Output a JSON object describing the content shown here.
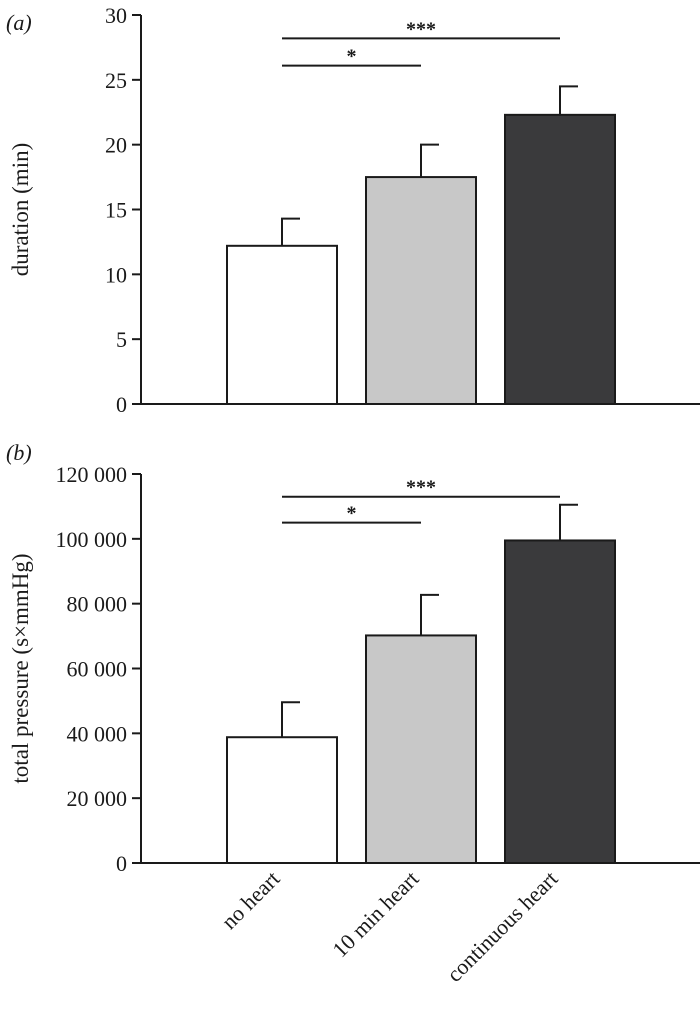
{
  "categories": [
    "no heart",
    "10 min heart",
    "continuous heart"
  ],
  "chart_data": [
    {
      "type": "bar",
      "panel_label": "(a)",
      "ylabel": "duration (min)",
      "ylim": [
        0,
        30
      ],
      "yticks": [
        0,
        5,
        10,
        15,
        20,
        25,
        30
      ],
      "ytick_labels": [
        "0",
        "5",
        "10",
        "15",
        "20",
        "25",
        "30"
      ],
      "categories": [
        "no heart",
        "10 min heart",
        "continuous heart"
      ],
      "values": [
        12.2,
        17.5,
        22.3
      ],
      "errors": [
        2.1,
        2.5,
        2.2
      ],
      "bar_colors": [
        "#ffffff",
        "#c8c8c8",
        "#3a3a3c"
      ],
      "significance": [
        {
          "from": 0,
          "to": 2,
          "value": 28.2,
          "label": "***"
        },
        {
          "from": 0,
          "to": 1,
          "value": 26.1,
          "label": "*"
        }
      ]
    },
    {
      "type": "bar",
      "panel_label": "(b)",
      "ylabel": "total pressure (s×mmHg)",
      "ylim": [
        0,
        120000
      ],
      "yticks": [
        0,
        20000,
        40000,
        60000,
        80000,
        100000,
        120000
      ],
      "ytick_labels": [
        "0",
        "20 000",
        "40 000",
        "60 000",
        "80 000",
        "100 000",
        "120 000"
      ],
      "categories": [
        "no heart",
        "10 min heart",
        "continuous heart"
      ],
      "values": [
        38800,
        70200,
        99500
      ],
      "errors": [
        10800,
        12500,
        11000
      ],
      "bar_colors": [
        "#ffffff",
        "#c8c8c8",
        "#3a3a3c"
      ],
      "significance": [
        {
          "from": 0,
          "to": 2,
          "value": 113000,
          "label": "***"
        },
        {
          "from": 0,
          "to": 1,
          "value": 105000,
          "label": "*"
        }
      ]
    }
  ]
}
